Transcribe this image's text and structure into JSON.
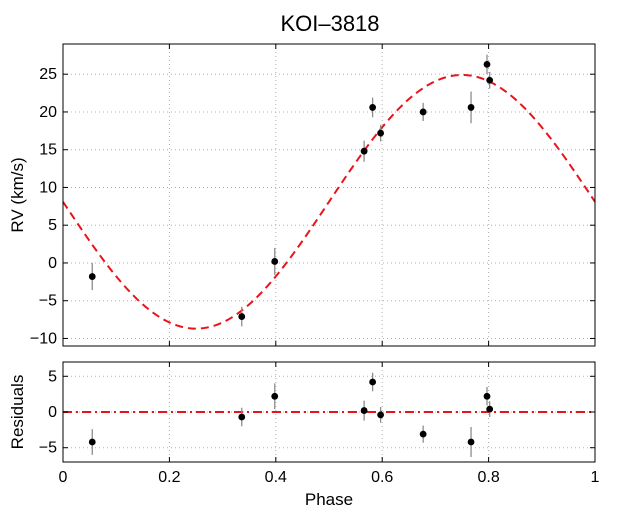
{
  "chart_data": [
    {
      "type": "scatter",
      "title": "KOI–3818",
      "xlabel": "",
      "ylabel": "RV (km/s)",
      "xlim": [
        0,
        1
      ],
      "ylim": [
        -11,
        29
      ],
      "x_ticks": [
        0,
        0.2,
        0.4,
        0.6,
        0.8,
        1
      ],
      "y_ticks": [
        -10,
        -5,
        0,
        5,
        10,
        15,
        20,
        25
      ],
      "y_tick_labels": [
        "−10",
        "−5",
        "0",
        "5",
        "10",
        "15",
        "20",
        "25"
      ],
      "grid": true,
      "model": {
        "name": "Keplerian fit",
        "style": "dashed",
        "color": "#e8141c",
        "offset": 8.1,
        "amplitude": 16.8,
        "x": [
          0,
          0.05,
          0.1,
          0.15,
          0.2,
          0.25,
          0.3,
          0.35,
          0.4,
          0.45,
          0.5,
          0.55,
          0.6,
          0.65,
          0.7,
          0.75,
          0.8,
          0.85,
          0.9,
          0.95,
          1
        ],
        "y": [
          8.1,
          2.9,
          -1.8,
          -5.5,
          -7.9,
          -8.7,
          -7.9,
          -5.5,
          -1.8,
          2.9,
          8.1,
          13.3,
          18.0,
          21.7,
          24.1,
          24.9,
          24.1,
          21.7,
          18.0,
          13.3,
          8.1
        ]
      },
      "series": [
        {
          "name": "RV data",
          "x": [
            0.055,
            0.336,
            0.398,
            0.566,
            0.582,
            0.597,
            0.677,
            0.767,
            0.797,
            0.802
          ],
          "y": [
            -1.8,
            -7.1,
            0.2,
            14.8,
            20.6,
            17.2,
            20.0,
            20.6,
            26.3,
            24.2
          ],
          "yerr": [
            1.8,
            1.3,
            1.8,
            1.4,
            1.3,
            1.1,
            1.2,
            2.1,
            1.3,
            1.1
          ]
        }
      ]
    },
    {
      "type": "scatter",
      "title": "",
      "xlabel": "Phase",
      "ylabel": "Residuals",
      "xlim": [
        0,
        1
      ],
      "ylim": [
        -7,
        7
      ],
      "x_ticks": [
        0,
        0.2,
        0.4,
        0.6,
        0.8,
        1
      ],
      "x_tick_labels": [
        "0",
        "0.2",
        "0.4",
        "0.6",
        "0.8",
        "1"
      ],
      "y_ticks": [
        -5,
        0,
        5
      ],
      "y_tick_labels": [
        "−5",
        "0",
        "5"
      ],
      "grid": true,
      "zero_line": {
        "y": 0,
        "style": "dash-dot",
        "color": "#e8141c"
      },
      "series": [
        {
          "name": "Residuals",
          "x": [
            0.055,
            0.336,
            0.398,
            0.566,
            0.582,
            0.597,
            0.677,
            0.767,
            0.797,
            0.802
          ],
          "y": [
            -4.2,
            -0.7,
            2.2,
            0.2,
            4.2,
            -0.4,
            -3.1,
            -4.2,
            2.2,
            0.4
          ],
          "yerr": [
            1.8,
            1.3,
            1.8,
            1.4,
            1.3,
            1.1,
            1.2,
            2.1,
            1.3,
            1.1
          ]
        }
      ]
    }
  ]
}
